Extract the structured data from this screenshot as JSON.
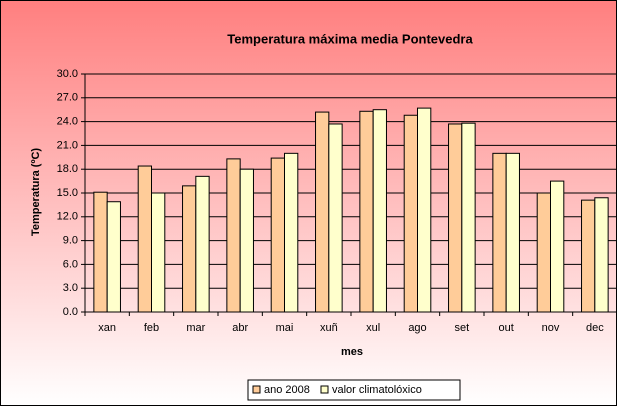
{
  "chart_data": {
    "type": "bar",
    "title": "Temperatura máxima media Pontevedra",
    "x_label": "mes",
    "y_label": "Temperatura (ºC)",
    "categories": [
      "xan",
      "feb",
      "mar",
      "abr",
      "mai",
      "xuñ",
      "xul",
      "ago",
      "set",
      "out",
      "nov",
      "dec"
    ],
    "series": [
      {
        "name": "ano 2008",
        "color": "#FFCC99",
        "values": [
          15.1,
          18.4,
          15.9,
          19.3,
          19.4,
          25.2,
          25.3,
          24.8,
          23.7,
          20.0,
          15.0,
          14.1
        ]
      },
      {
        "name": "valor climatolóxico",
        "color": "#FFFFCC",
        "values": [
          13.9,
          15.0,
          17.1,
          18.0,
          20.0,
          23.7,
          25.5,
          25.7,
          23.8,
          20.0,
          16.5,
          14.4
        ]
      }
    ],
    "ylim": [
      0,
      30
    ],
    "yticks": [
      {
        "value": 0,
        "label": "0.0"
      },
      {
        "value": 3,
        "label": "3.0"
      },
      {
        "value": 6,
        "label": "6.0"
      },
      {
        "value": 9,
        "label": "9.0"
      },
      {
        "value": 12,
        "label": "12.0"
      },
      {
        "value": 15,
        "label": "15.0"
      },
      {
        "value": 18,
        "label": "18.0"
      },
      {
        "value": 21,
        "label": "21.0"
      },
      {
        "value": 24,
        "label": "24.0"
      },
      {
        "value": 27,
        "label": "27.0"
      },
      {
        "value": 30,
        "label": "30.0"
      }
    ],
    "grid": true
  }
}
